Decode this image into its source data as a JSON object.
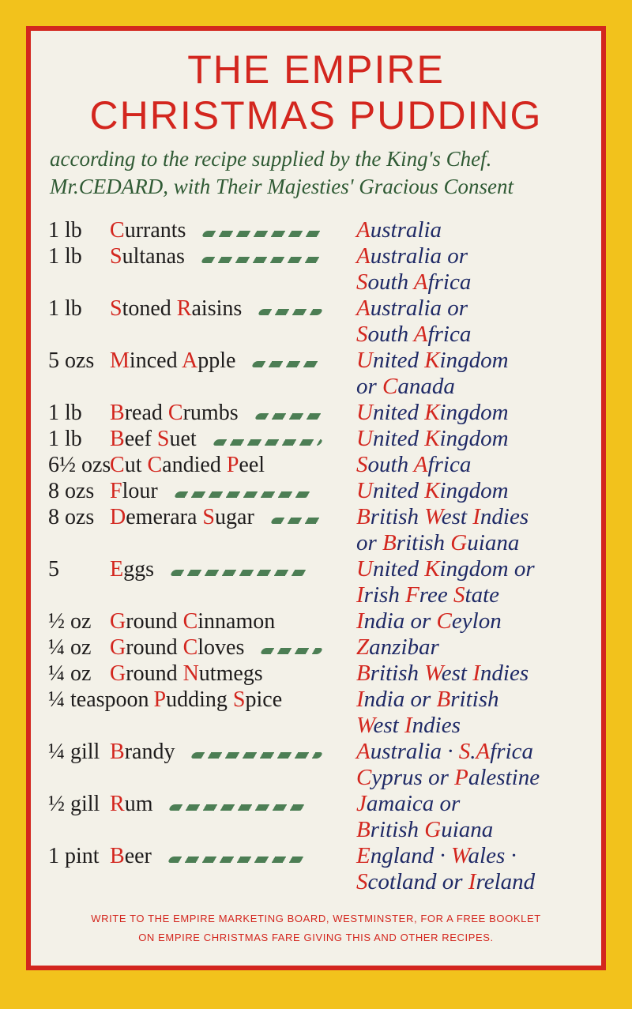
{
  "title": {
    "line1": "THE EMPIRE",
    "line2": "CHRISTMAS PUDDING"
  },
  "subtitle": {
    "line1": "according to the recipe supplied by the King's Chef.",
    "line2": "Mr.CEDARD, with Their Majesties' Gracious Consent"
  },
  "colors": {
    "background": "#f2c21c",
    "border": "#d3261e",
    "paper": "#f3f1e8",
    "accent": "#d3261e",
    "origin_text": "#1f2a66",
    "subtitle": "#2f5a34",
    "holly": "#2f6a3a"
  },
  "ingredients": [
    {
      "qty": "1 lb",
      "name": "Currants",
      "holly": true,
      "origins": [
        "Australia"
      ]
    },
    {
      "qty": "1 lb",
      "name": "Sultanas",
      "holly": true,
      "origins": [
        "Australia or",
        "South Africa"
      ]
    },
    {
      "qty": "1 lb",
      "name": "Stoned Raisins",
      "holly": true,
      "origins": [
        "Australia or",
        "South Africa"
      ]
    },
    {
      "qty": "5 ozs",
      "name": "Minced Apple",
      "holly": true,
      "origins": [
        "United Kingdom",
        "or Canada"
      ]
    },
    {
      "qty": "1 lb",
      "name": "Bread Crumbs",
      "holly": true,
      "origins": [
        "United Kingdom"
      ]
    },
    {
      "qty": "1 lb",
      "name": "Beef Suet",
      "holly": true,
      "origins": [
        "United Kingdom"
      ]
    },
    {
      "qty": "6½ ozs",
      "name": "Cut Candied Peel",
      "holly": false,
      "origins": [
        "South Africa"
      ]
    },
    {
      "qty": "8 ozs",
      "name": "Flour",
      "holly": true,
      "origins": [
        "United Kingdom"
      ]
    },
    {
      "qty": "8 ozs",
      "name": "Demerara Sugar",
      "holly": true,
      "origins": [
        "British West Indies",
        "or British Guiana"
      ]
    },
    {
      "qty": "5",
      "name": "Eggs",
      "holly": true,
      "origins": [
        "United Kingdom or",
        "Irish Free State"
      ]
    },
    {
      "qty": "½ oz",
      "name": "Ground Cinnamon",
      "holly": false,
      "origins": [
        "India or Ceylon"
      ]
    },
    {
      "qty": "¼ oz",
      "name": "Ground Cloves",
      "holly": true,
      "origins": [
        "Zanzibar"
      ]
    },
    {
      "qty": "¼ oz",
      "name": "Ground Nutmegs",
      "holly": false,
      "origins": [
        "British West Indies"
      ]
    },
    {
      "qty": "¼ teaspoon",
      "name": "Pudding Spice",
      "holly": false,
      "origins": [
        "India or British",
        "West Indies"
      ]
    },
    {
      "qty": "¼ gill",
      "name": "Brandy",
      "holly": true,
      "origins": [
        "Australia · S.Africa",
        "Cyprus or Palestine"
      ]
    },
    {
      "qty": "½ gill",
      "name": "Rum",
      "holly": true,
      "origins": [
        "Jamaica or",
        "British Guiana"
      ]
    },
    {
      "qty": "1 pint",
      "name": "Beer",
      "holly": true,
      "origins": [
        "England · Wales ·",
        "Scotland or Ireland"
      ]
    }
  ],
  "footer": {
    "line1": "WRITE TO THE EMPIRE MARKETING BOARD, WESTMINSTER, FOR A FREE BOOKLET",
    "line2": "ON EMPIRE CHRISTMAS FARE GIVING THIS AND OTHER RECIPES."
  }
}
